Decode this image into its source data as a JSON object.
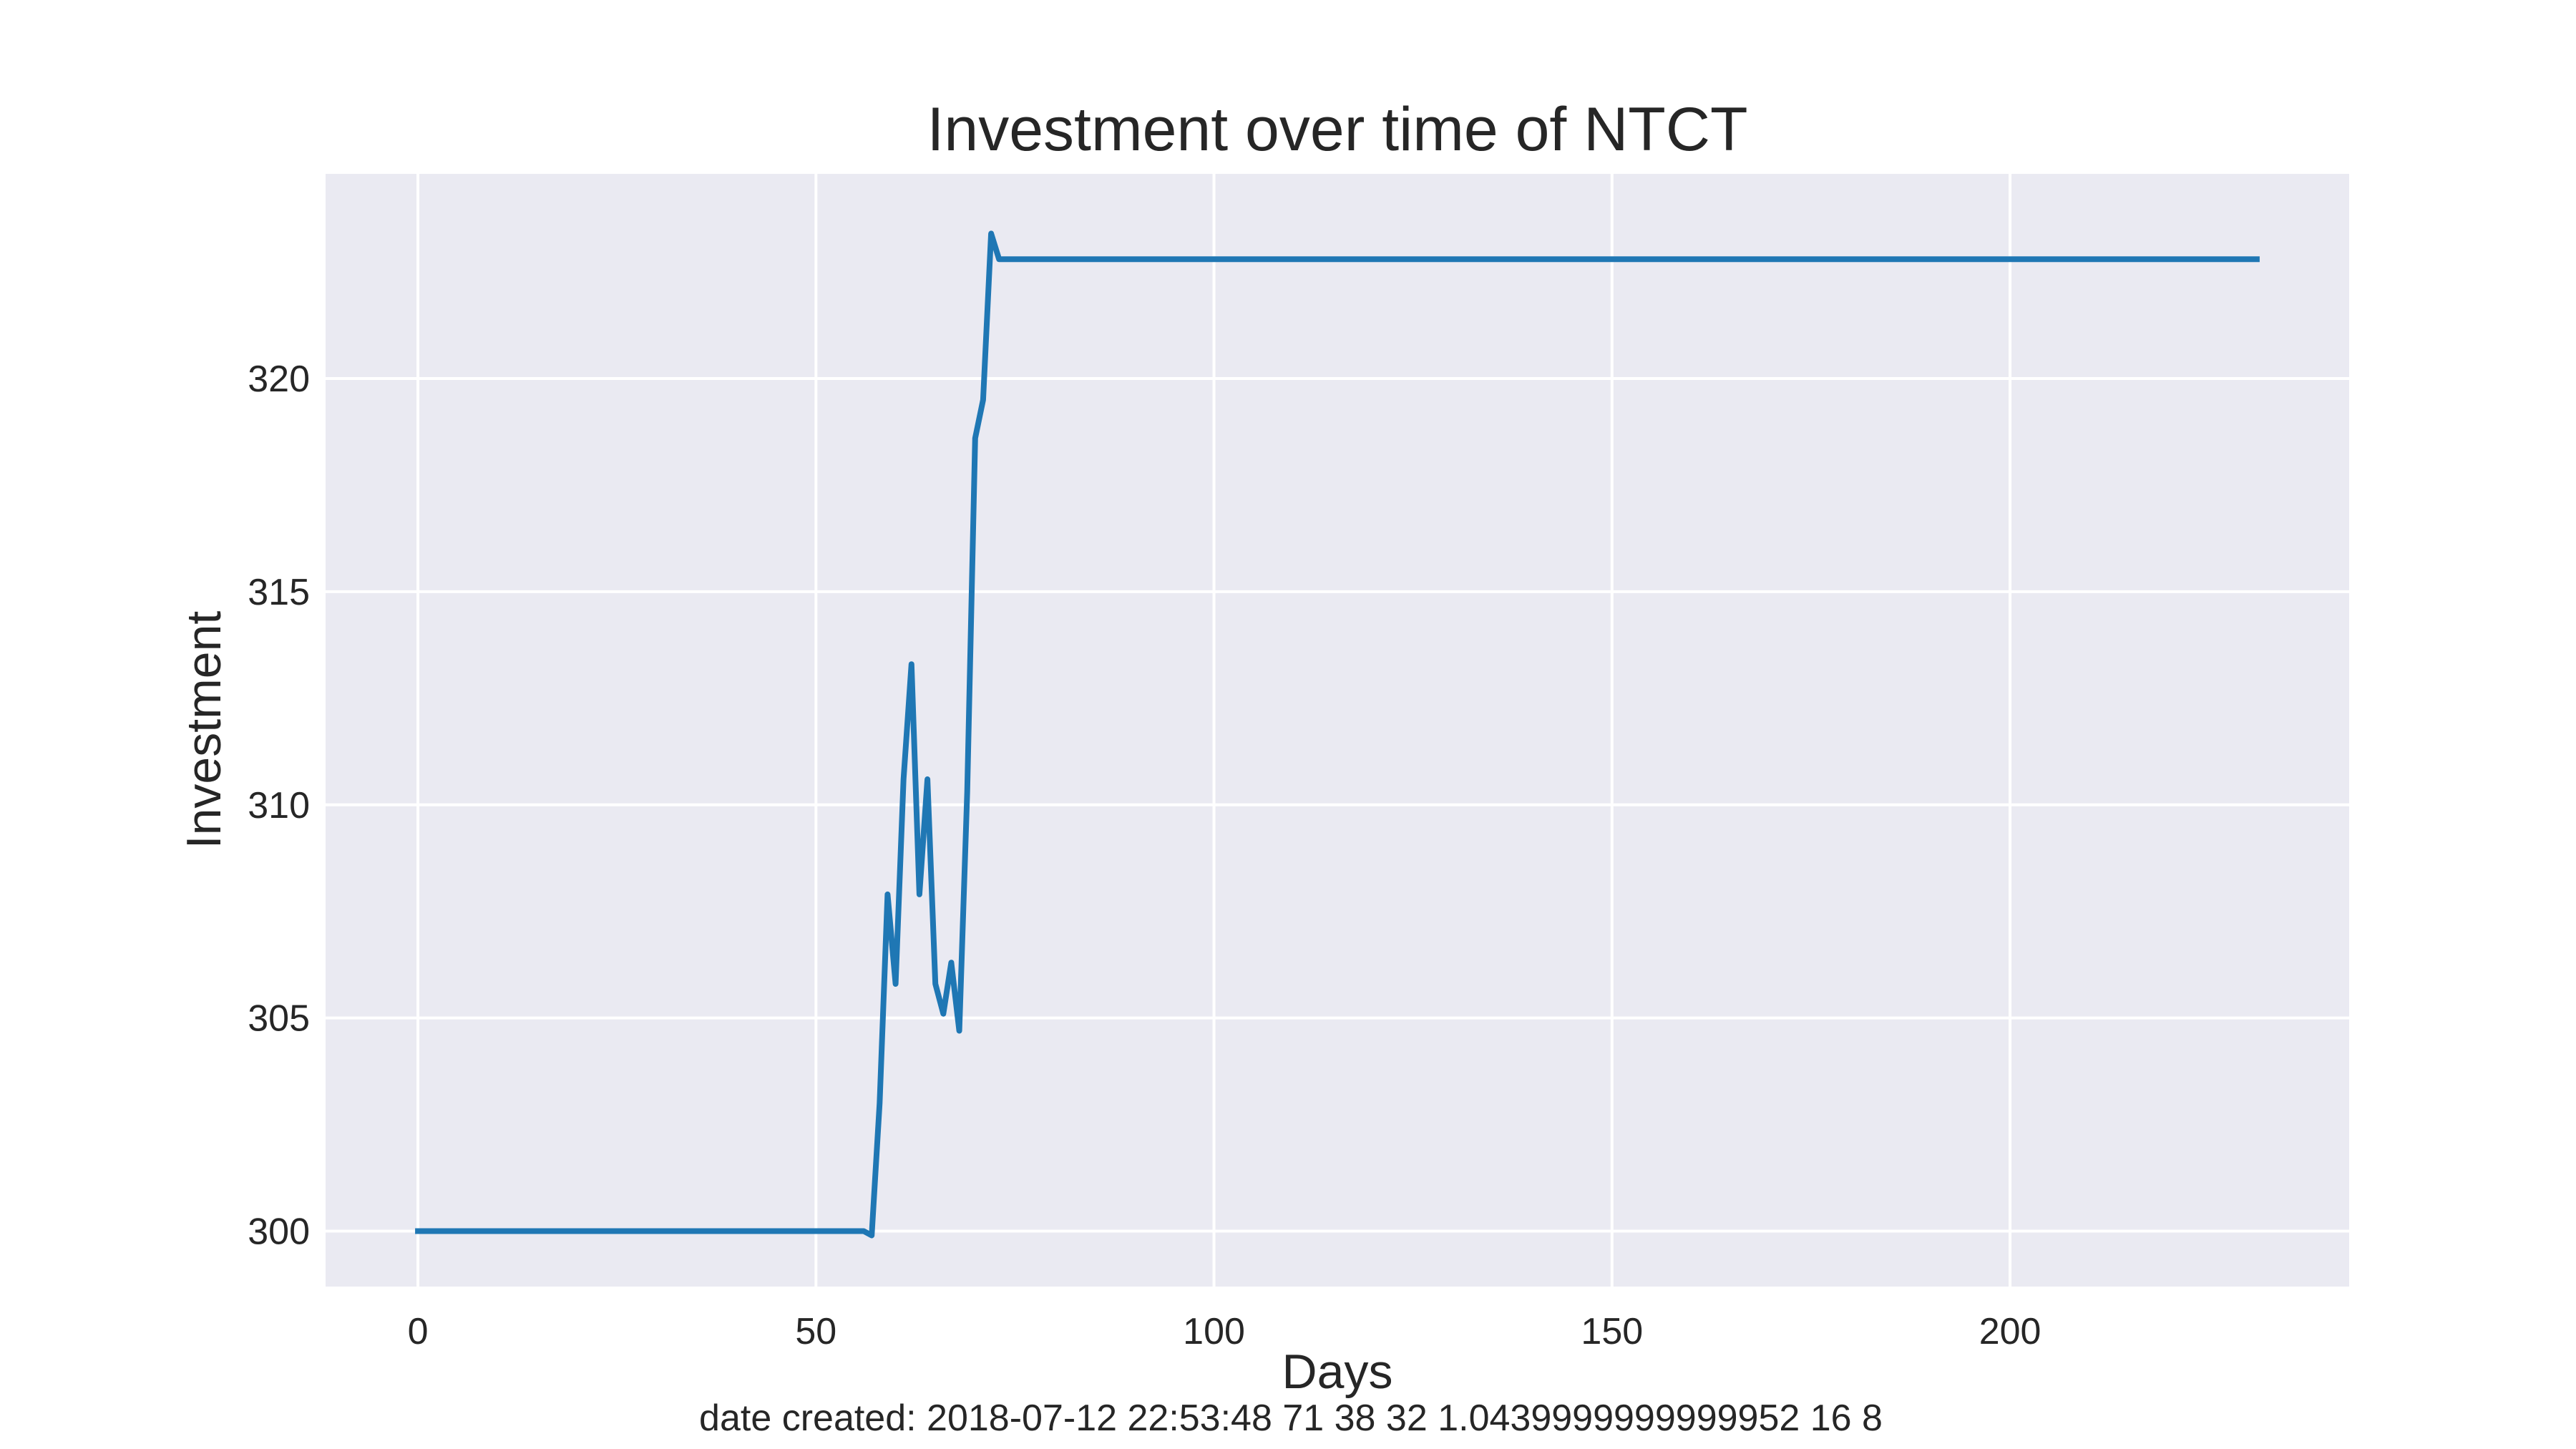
{
  "chart_data": {
    "type": "line",
    "title": "Investment over time of NTCT",
    "xlabel": "Days",
    "ylabel": "Investment",
    "xlim": [
      -11.6,
      242.6
    ],
    "ylim": [
      298.7,
      324.8
    ],
    "xticks": [
      0,
      50,
      100,
      150,
      200
    ],
    "yticks": [
      300,
      305,
      310,
      315,
      320
    ],
    "grid": true,
    "series": [
      {
        "color": "#1f77b4",
        "x": [
          0,
          56,
          57,
          58,
          59,
          60,
          61,
          62,
          63,
          64,
          65,
          66,
          67,
          68,
          69,
          70,
          71,
          72,
          73,
          231
        ],
        "y": [
          300.0,
          300.0,
          299.9,
          303.0,
          307.9,
          305.8,
          310.6,
          313.3,
          307.9,
          310.6,
          305.8,
          305.1,
          306.3,
          304.7,
          310.3,
          318.6,
          319.5,
          323.4,
          322.8,
          322.8
        ]
      }
    ]
  },
  "footer": {
    "text": "date created: 2018-07-12 22:53:48 71 38 32 1.0439999999999952 16 8"
  }
}
